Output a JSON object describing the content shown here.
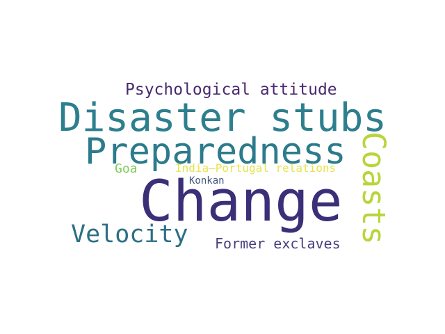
{
  "words": [
    {
      "text": "Psychological attitude",
      "color": "#4a2a6e"
    },
    {
      "text": "Disaster stubs",
      "color": "#2e7f8e"
    },
    {
      "text": "Preparedness",
      "color": "#2b7b8c"
    },
    {
      "text": "Coasts",
      "color": "#b8d53a"
    },
    {
      "text": "Goa",
      "color": "#7ccc5a"
    },
    {
      "text": "India–Portugal relations",
      "color": "#e7e34d"
    },
    {
      "text": "Konkan",
      "color": "#44577f"
    },
    {
      "text": "Change",
      "color": "#3b2f78"
    },
    {
      "text": "Velocity",
      "color": "#2c6f84"
    },
    {
      "text": "Former exclaves",
      "color": "#473d7c"
    }
  ]
}
